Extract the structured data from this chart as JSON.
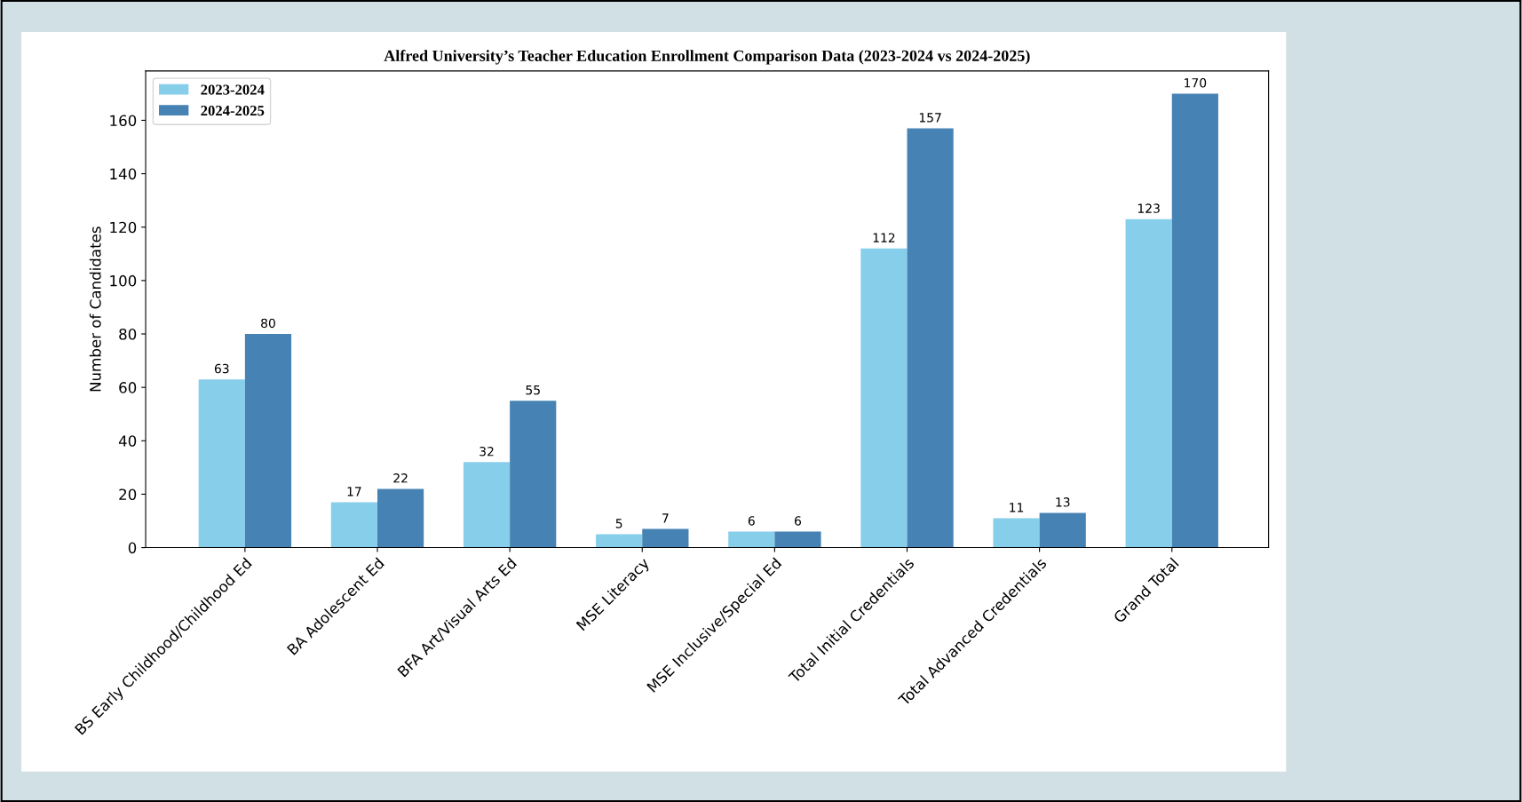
{
  "chart_data": {
    "type": "bar",
    "title": "Alfred University’s Teacher Education Enrollment Comparison Data (2023-2024 vs 2024-2025)",
    "ylabel": "Number of Candidates",
    "categories": [
      "BS Early Childhood/Childhood Ed",
      "BA Adolescent Ed",
      "BFA Art/Visual Arts Ed",
      "MSE Literacy",
      "MSE Inclusive/Special Ed",
      "Total Initial Credentials",
      "Total Advanced Credentials",
      "Grand Total"
    ],
    "series": [
      {
        "name": "2023-2024",
        "color": "#87ceeb",
        "values": [
          63,
          17,
          32,
          5,
          6,
          112,
          11,
          123
        ]
      },
      {
        "name": "2024-2025",
        "color": "#4682b4",
        "values": [
          80,
          22,
          55,
          7,
          6,
          157,
          13,
          170
        ]
      }
    ],
    "ylim": [
      0,
      178.5
    ],
    "yticks": [
      0,
      20,
      40,
      60,
      80,
      100,
      120,
      140,
      160
    ],
    "data_labels": true,
    "legend": "top left",
    "grid": false
  }
}
